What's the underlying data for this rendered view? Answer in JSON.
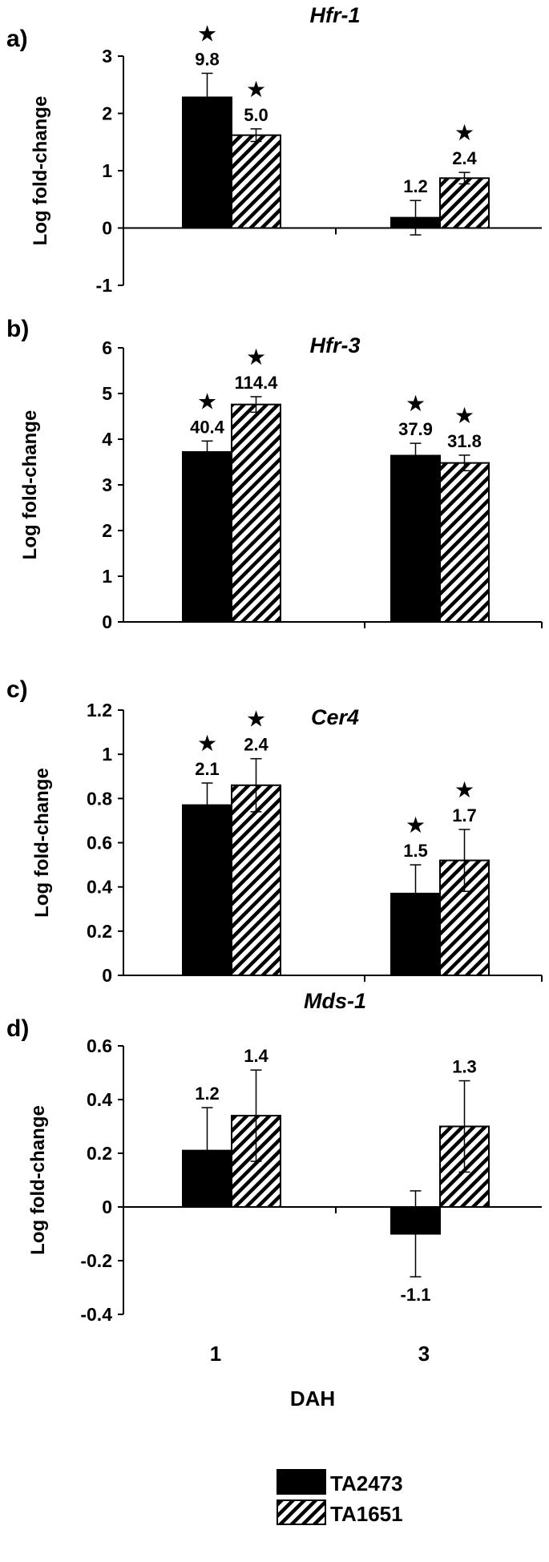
{
  "colors": {
    "series1_fill": "#000000",
    "series2_fill": "hatched-black-white",
    "axis": "#000000",
    "background": "#ffffff"
  },
  "significance_marker": "★",
  "xlabel": "DAH",
  "legend": {
    "placement": "bottom-center"
  },
  "chart_data": [
    {
      "type": "bar",
      "panel_label": "a)",
      "title": "Hfr-1",
      "ylabel": "Log fold-change",
      "xlabel": "DAH",
      "ylim": [
        -1,
        3
      ],
      "yticks": [
        "-1",
        "0",
        "1",
        "2",
        "3"
      ],
      "categories": [
        "1",
        "3"
      ],
      "show_category_labels": false,
      "grid": false,
      "series": [
        {
          "name": "TA2473",
          "values": [
            2.28,
            0.18
          ],
          "errors": [
            0.42,
            0.3
          ],
          "labels": [
            "9.8",
            "1.2"
          ],
          "significant": [
            true,
            false
          ]
        },
        {
          "name": "TA1651",
          "values": [
            1.62,
            0.87
          ],
          "errors": [
            0.11,
            0.1
          ],
          "labels": [
            "5.0",
            "2.4"
          ],
          "significant": [
            true,
            true
          ]
        }
      ]
    },
    {
      "type": "bar",
      "panel_label": "b)",
      "title": "Hfr-3",
      "ylabel": "Log fold-change",
      "xlabel": "DAH",
      "ylim": [
        0,
        6
      ],
      "yticks": [
        "0",
        "1",
        "2",
        "3",
        "4",
        "5",
        "6"
      ],
      "categories": [
        "1",
        "3"
      ],
      "show_category_labels": false,
      "grid": false,
      "series": [
        {
          "name": "TA2473",
          "values": [
            3.72,
            3.64
          ],
          "errors": [
            0.24,
            0.27
          ],
          "labels": [
            "40.4",
            "37.9"
          ],
          "significant": [
            true,
            true
          ]
        },
        {
          "name": "TA1651",
          "values": [
            4.76,
            3.48
          ],
          "errors": [
            0.17,
            0.17
          ],
          "labels": [
            "114.4",
            "31.8"
          ],
          "significant": [
            true,
            true
          ]
        }
      ]
    },
    {
      "type": "bar",
      "panel_label": "c)",
      "title": "Cer4",
      "ylabel": "Log fold-change",
      "xlabel": "DAH",
      "ylim": [
        0,
        1.2
      ],
      "yticks": [
        "0",
        "0.2",
        "0.4",
        "0.6",
        "0.8",
        "1",
        "1.2"
      ],
      "categories": [
        "1",
        "3"
      ],
      "show_category_labels": false,
      "grid": false,
      "series": [
        {
          "name": "TA2473",
          "values": [
            0.77,
            0.37
          ],
          "errors": [
            0.1,
            0.13
          ],
          "labels": [
            "2.1",
            "1.5"
          ],
          "significant": [
            true,
            true
          ]
        },
        {
          "name": "TA1651",
          "values": [
            0.86,
            0.52
          ],
          "errors": [
            0.12,
            0.14
          ],
          "labels": [
            "2.4",
            "1.7"
          ],
          "significant": [
            true,
            true
          ]
        }
      ]
    },
    {
      "type": "bar",
      "panel_label": "d)",
      "title": "Mds-1",
      "ylabel": "Log fold-change",
      "xlabel": "DAH",
      "ylim": [
        -0.4,
        0.6
      ],
      "yticks": [
        "-0.4",
        "-0.2",
        "0",
        "0.2",
        "0.4",
        "0.6"
      ],
      "categories": [
        "1",
        "3"
      ],
      "show_category_labels": true,
      "grid": false,
      "series": [
        {
          "name": "TA2473",
          "values": [
            0.21,
            -0.1
          ],
          "errors": [
            0.16,
            0.16
          ],
          "labels": [
            "1.2",
            "-1.1"
          ],
          "significant": [
            false,
            false
          ]
        },
        {
          "name": "TA1651",
          "values": [
            0.34,
            0.3
          ],
          "errors": [
            0.17,
            0.17
          ],
          "labels": [
            "1.4",
            "1.3"
          ],
          "significant": [
            false,
            false
          ]
        }
      ]
    }
  ]
}
